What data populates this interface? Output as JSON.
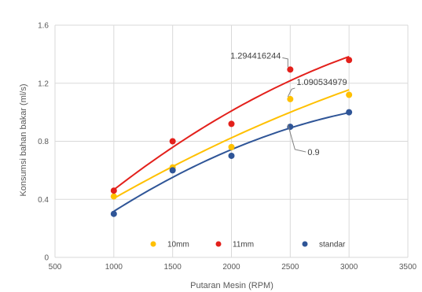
{
  "chart_data": {
    "type": "scatter",
    "title": "",
    "xlabel": "Putaran Mesin (RPM)",
    "ylabel": "Konsumsi bahan bakar (ml/s)",
    "xlim": [
      500,
      3500
    ],
    "ylim": [
      0,
      1.6
    ],
    "xticks": [
      500,
      1000,
      1500,
      2000,
      2500,
      3000,
      3500
    ],
    "yticks": [
      0,
      0.4,
      0.8,
      1.2,
      1.6
    ],
    "ytick_labels": [
      "0",
      "0.4",
      "0.8",
      "1.2",
      "1.6"
    ],
    "grid": true,
    "legend_position": "bottom-inside",
    "trendline": "polynomial-order-2",
    "series": [
      {
        "name": "10mm",
        "color": "#FFC000",
        "x": [
          1000,
          1500,
          2000,
          2500,
          3000
        ],
        "y": [
          0.42,
          0.62,
          0.76,
          1.090534979,
          1.12
        ]
      },
      {
        "name": "11mm",
        "color": "#E3201B",
        "x": [
          1000,
          1500,
          2000,
          2500,
          3000
        ],
        "y": [
          0.46,
          0.8,
          0.92,
          1.294416244,
          1.36
        ]
      },
      {
        "name": "standar",
        "color": "#2F5597",
        "x": [
          1000,
          1500,
          2000,
          2500,
          3000
        ],
        "y": [
          0.3,
          0.6,
          0.7,
          0.9,
          1.0
        ]
      }
    ],
    "annotations": [
      {
        "text": "1.294416244",
        "series": 1,
        "point": 3
      },
      {
        "text": "1.090534979",
        "series": 0,
        "point": 3
      },
      {
        "text": "0.9",
        "series": 2,
        "point": 3
      }
    ]
  }
}
